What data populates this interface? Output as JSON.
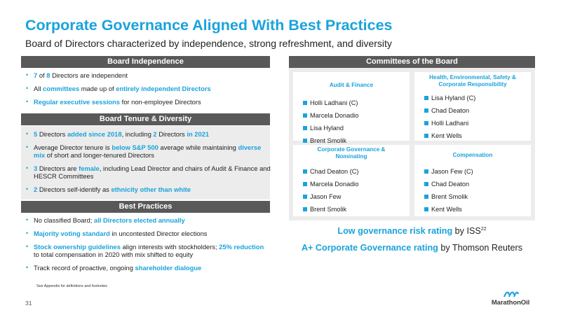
{
  "title": "Corporate Governance Aligned With Best Practices",
  "subtitle": "Board of Directors characterized by independence, strong refreshment, and diversity",
  "board_independence": {
    "header": "Board Independence",
    "items": [
      [
        {
          "t": "7",
          "h": true
        },
        {
          "t": " of ",
          "h": false
        },
        {
          "t": "8",
          "h": true
        },
        {
          "t": " Directors are independent",
          "h": false
        }
      ],
      [
        {
          "t": "All ",
          "h": false
        },
        {
          "t": "committees",
          "h": true
        },
        {
          "t": " made up of ",
          "h": false
        },
        {
          "t": "entirely independent Directors",
          "h": true
        }
      ],
      [
        {
          "t": "Regular executive sessions",
          "h": true
        },
        {
          "t": " for non-employee Directors",
          "h": false
        }
      ]
    ]
  },
  "board_tenure": {
    "header": "Board Tenure & Diversity",
    "items": [
      [
        {
          "t": "5",
          "h": true
        },
        {
          "t": " Directors ",
          "h": false
        },
        {
          "t": "added since 2018",
          "h": true
        },
        {
          "t": ", including ",
          "h": false
        },
        {
          "t": "2",
          "h": true
        },
        {
          "t": " Directors ",
          "h": false
        },
        {
          "t": "in 2021",
          "h": true
        }
      ],
      [
        {
          "t": "Average Director tenure is ",
          "h": false
        },
        {
          "t": "below S&P 500",
          "h": true
        },
        {
          "t": " average while maintaining ",
          "h": false
        },
        {
          "t": "diverse mix",
          "h": true
        },
        {
          "t": " of short and longer-tenured Directors",
          "h": false
        }
      ],
      [
        {
          "t": "3",
          "h": true
        },
        {
          "t": " Directors are ",
          "h": false
        },
        {
          "t": "female",
          "h": true
        },
        {
          "t": ", including Lead Director and chairs of Audit & Finance and HESCR Committees",
          "h": false
        }
      ],
      [
        {
          "t": "2",
          "h": true
        },
        {
          "t": " Directors self-identify as ",
          "h": false
        },
        {
          "t": "ethnicity other than white",
          "h": true
        }
      ]
    ]
  },
  "best_practices": {
    "header": "Best Practices",
    "items": [
      [
        {
          "t": "No classified Board; ",
          "h": false
        },
        {
          "t": "all Directors elected annually",
          "h": true
        }
      ],
      [
        {
          "t": "Majority voting standard",
          "h": true
        },
        {
          "t": " in uncontested Director elections",
          "h": false
        }
      ],
      [
        {
          "t": "Stock ownership guidelines",
          "h": true
        },
        {
          "t": " align interests with stockholders; ",
          "h": false
        },
        {
          "t": "25% reduction",
          "h": true
        },
        {
          "t": " to total compensation in 2020 with mix shifted to equity",
          "h": false
        }
      ],
      [
        {
          "t": "Track record of proactive, ongoing ",
          "h": false
        },
        {
          "t": "shareholder dialogue",
          "h": true
        }
      ]
    ]
  },
  "committees": {
    "header": "Committees of the Board",
    "audit": {
      "title": "Audit & Finance",
      "members": [
        "Holli Ladhani (C)",
        "Marcela Donadio",
        "Lisa Hyland",
        "Brent Smolik"
      ]
    },
    "hescr": {
      "title_line1": "Health, Environmental, Safety &",
      "title_line2": "Corporate Responsibility",
      "members": [
        "Lisa Hyland (C)",
        "Chad Deaton",
        "Holli Ladhani",
        "Kent Wells"
      ]
    },
    "governance": {
      "title_line1": "Corporate Governance &",
      "title_line2": "Nominating",
      "members": [
        "Chad Deaton (C)",
        "Marcela Donadio",
        "Jason Few",
        "Brent Smolik"
      ]
    },
    "compensation": {
      "title": "Compensation",
      "members": [
        "Jason Few (C)",
        "Chad Deaton",
        "Brent Smolik",
        "Kent Wells"
      ]
    }
  },
  "ratings": {
    "risk_highlight": "Low governance risk rating",
    "risk_suffix": " by ISS",
    "risk_footnote": "22",
    "cg_highlight": "A+ Corporate Governance rating",
    "cg_suffix": " by Thomson Reuters"
  },
  "footnote": "See Appendix for definitions and footnotes",
  "page_number": "31",
  "logo_text": "MarathonOil",
  "colors": {
    "accent": "#1aa3db",
    "header_bar": "#595959",
    "panel": "#ececec"
  }
}
